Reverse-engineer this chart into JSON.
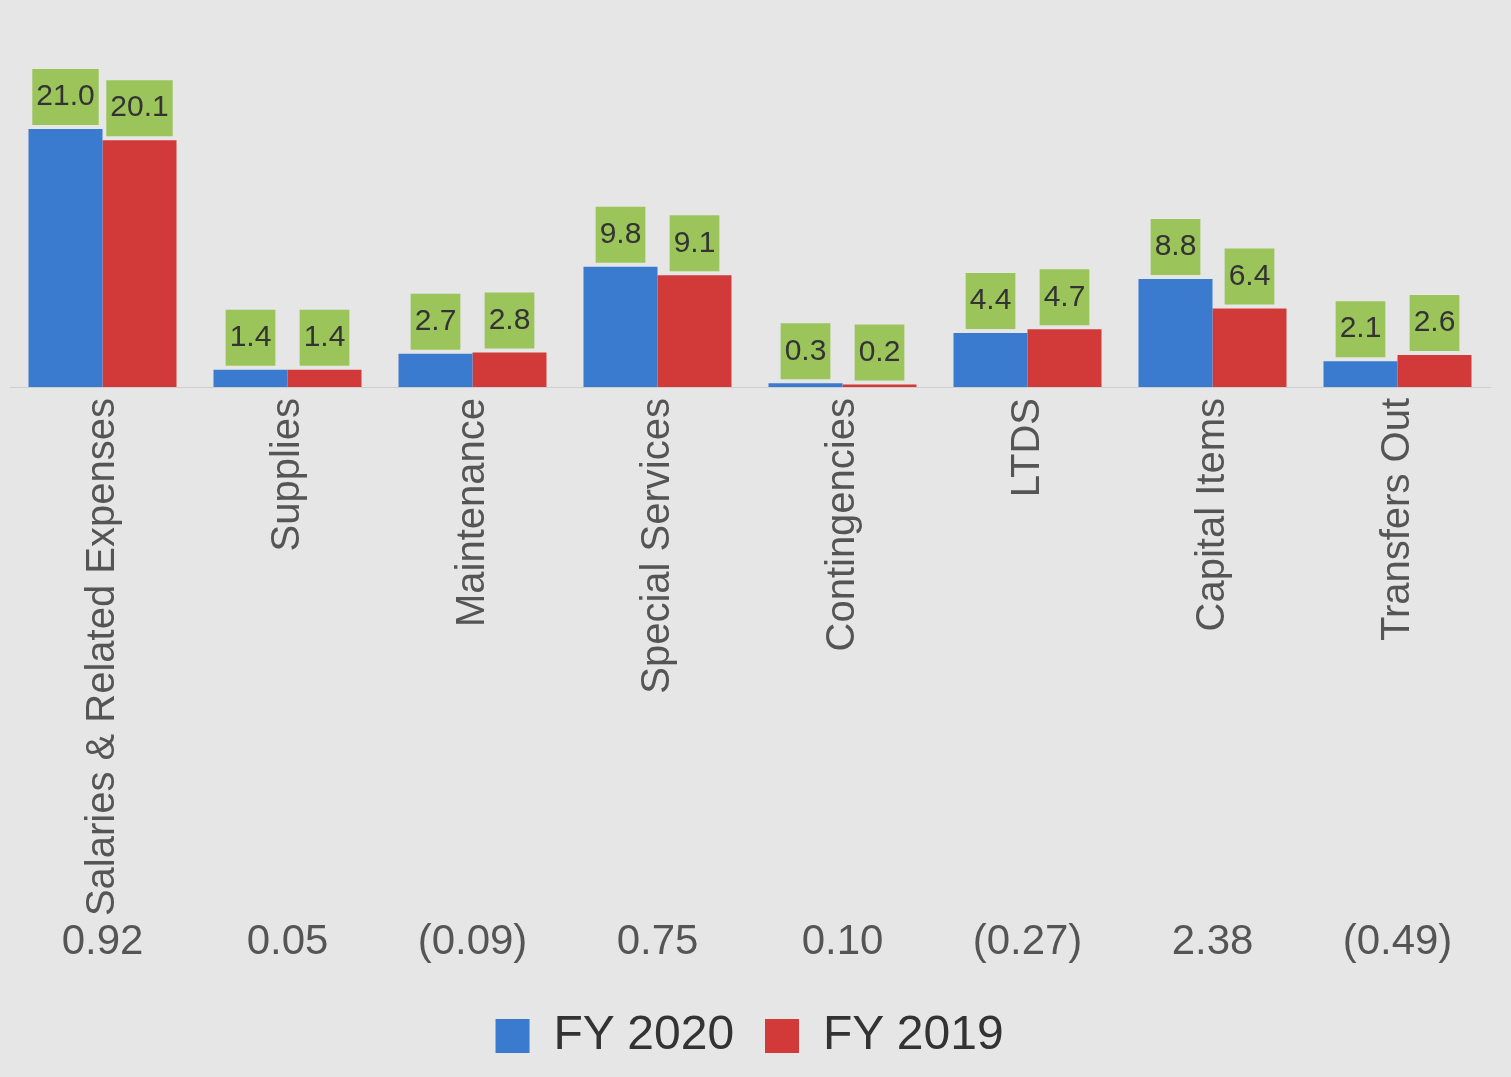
{
  "chart_data": {
    "type": "bar",
    "categories": [
      "Salaries & Related Expenses",
      "Supplies",
      "Maintenance",
      "Special Services",
      "Contingencies",
      "LTDS",
      "Capital Items",
      "Transfers Out"
    ],
    "series": [
      {
        "name": "FY 2020",
        "color": "#3a7bd0",
        "values": [
          21.0,
          1.4,
          2.7,
          9.8,
          0.3,
          4.4,
          8.8,
          2.1
        ],
        "value_labels": [
          "21.0",
          "1.4",
          "2.7",
          "9.8",
          "0.3",
          "4.4",
          "8.8",
          "2.1"
        ]
      },
      {
        "name": "FY 2019",
        "color": "#d23a3a",
        "values": [
          20.1,
          1.4,
          2.8,
          9.1,
          0.2,
          4.7,
          6.4,
          2.6
        ],
        "value_labels": [
          "20.1",
          "1.4",
          "2.8",
          "9.1",
          "0.2",
          "4.7",
          "6.4",
          "2.6"
        ]
      }
    ],
    "annotations": [
      "0.92",
      "0.05",
      "(0.09)",
      "0.75",
      "0.10",
      "(0.27)",
      "2.38",
      "(0.49)"
    ],
    "legend": "bottom"
  }
}
